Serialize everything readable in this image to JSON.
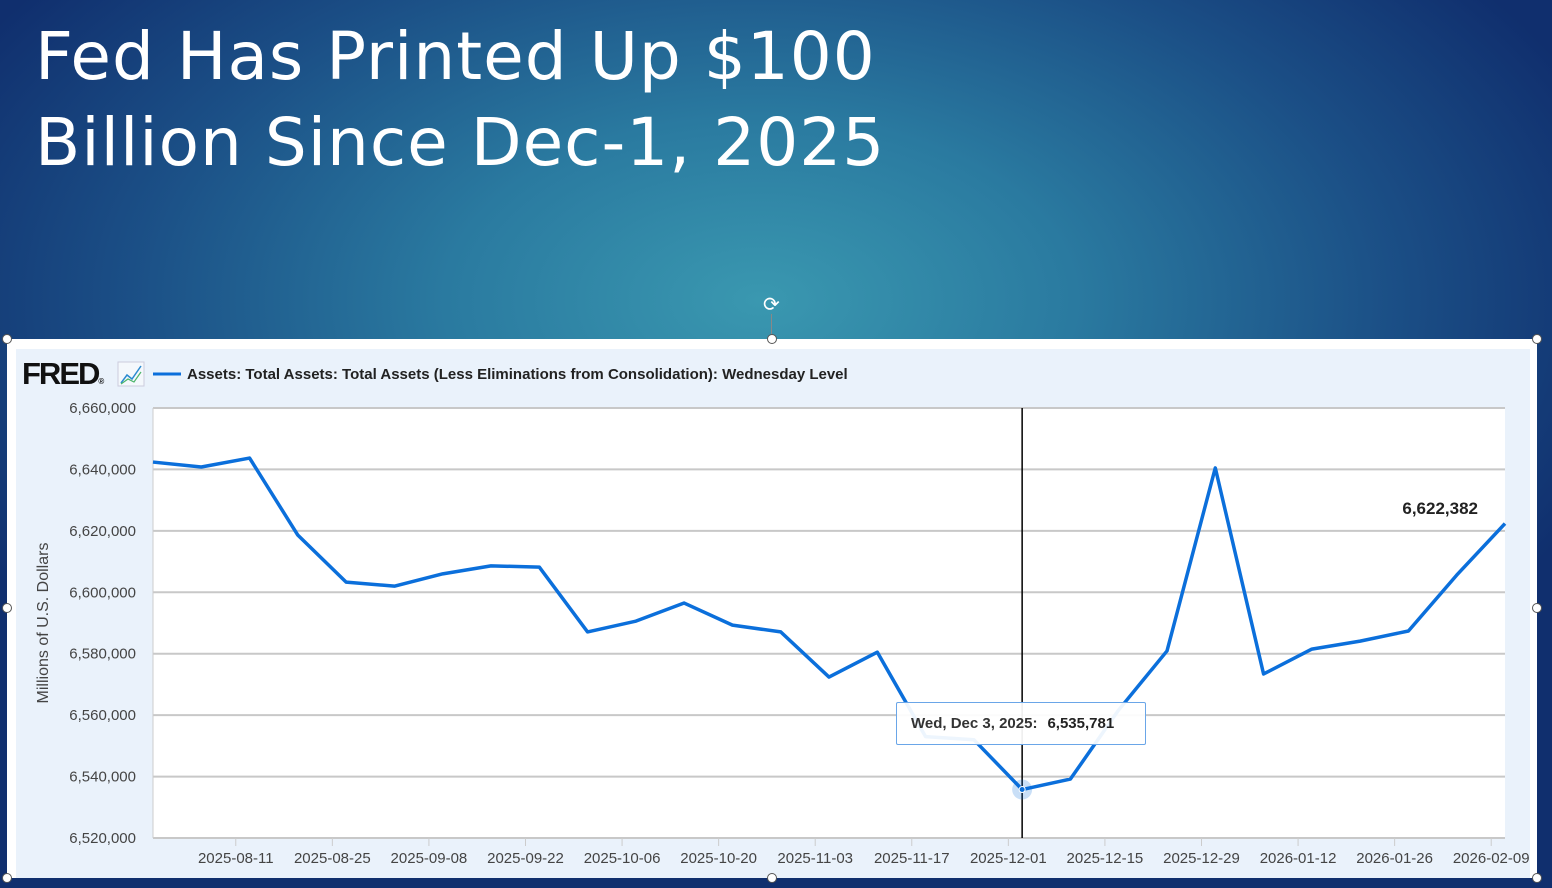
{
  "slide": {
    "title_lines": [
      "Fed Has Printed Up $100",
      "Billion Since Dec-1, 2025"
    ]
  },
  "chart_data": {
    "type": "line",
    "source_logo": "FRED",
    "legend": "Assets: Total Assets: Total Assets (Less Eliminations from Consolidation): Wednesday Level",
    "ylabel": "Millions of U.S. Dollars",
    "ylim": [
      6520000,
      6660000
    ],
    "yticks": [
      "6,520,000",
      "6,540,000",
      "6,560,000",
      "6,580,000",
      "6,600,000",
      "6,620,000",
      "6,640,000",
      "6,660,000"
    ],
    "ytick_values": [
      6520000,
      6540000,
      6560000,
      6580000,
      6600000,
      6620000,
      6640000,
      6660000
    ],
    "xlim": [
      "2025-07-30",
      "2026-02-11"
    ],
    "xticks": [
      "2025-08-11",
      "2025-08-25",
      "2025-09-08",
      "2025-09-22",
      "2025-10-06",
      "2025-10-20",
      "2025-11-03",
      "2025-11-17",
      "2025-12-01",
      "2025-12-15",
      "2025-12-29",
      "2026-01-12",
      "2026-01-26",
      "2026-02-09"
    ],
    "grid": true,
    "series": [
      {
        "color": "#0b6fdb",
        "x": [
          "2025-07-30",
          "2025-08-06",
          "2025-08-13",
          "2025-08-20",
          "2025-08-27",
          "2025-09-03",
          "2025-09-10",
          "2025-09-17",
          "2025-09-24",
          "2025-10-01",
          "2025-10-08",
          "2025-10-15",
          "2025-10-22",
          "2025-10-29",
          "2025-11-05",
          "2025-11-12",
          "2025-11-19",
          "2025-11-26",
          "2025-12-03",
          "2025-12-10",
          "2025-12-17",
          "2025-12-24",
          "2025-12-31",
          "2026-01-07",
          "2026-01-14",
          "2026-01-21",
          "2026-01-28",
          "2026-02-04",
          "2026-02-11"
        ],
        "y": [
          6642400,
          6640800,
          6643700,
          6618600,
          6603300,
          6602000,
          6606000,
          6608600,
          6608200,
          6587100,
          6590600,
          6596500,
          6589300,
          6587100,
          6572400,
          6580500,
          6553000,
          6552000,
          6535781,
          6539200,
          6561700,
          6580900,
          6640500,
          6573400,
          6581500,
          6584100,
          6587400,
          6605600,
          6622382
        ]
      }
    ],
    "last_value_label": "6,622,382",
    "tooltip": {
      "date": "Wed, Dec 3, 2025:",
      "value": "6,535,781",
      "x": "2025-12-03"
    }
  }
}
